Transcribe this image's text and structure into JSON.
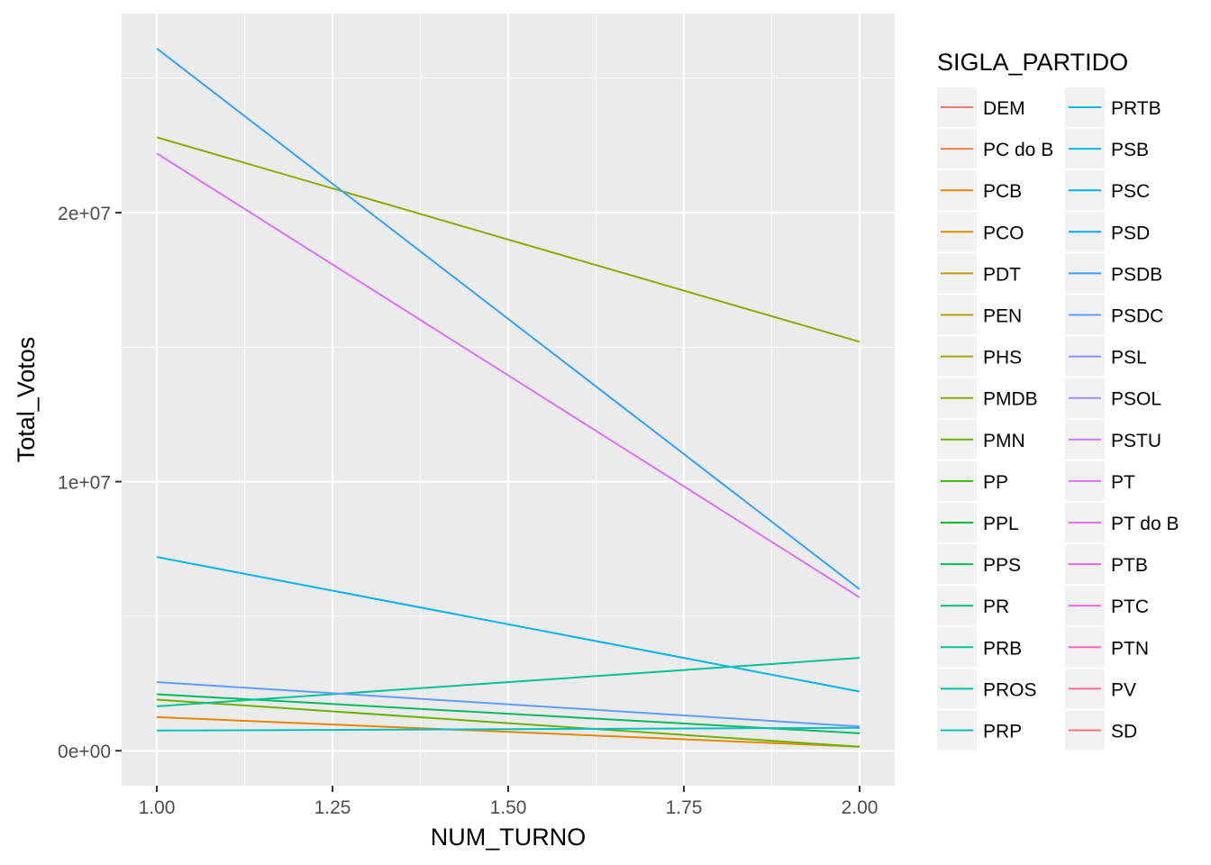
{
  "chart_data": {
    "type": "line",
    "xlabel": "NUM_TURNO",
    "ylabel": "Total_Votos",
    "xlim": [
      0.95,
      2.05
    ],
    "ylim": [
      -1300000,
      27400000
    ],
    "x_ticks": [
      {
        "value": 1.0,
        "label": "1.00"
      },
      {
        "value": 1.25,
        "label": "1.25"
      },
      {
        "value": 1.5,
        "label": "1.50"
      },
      {
        "value": 1.75,
        "label": "1.75"
      },
      {
        "value": 2.0,
        "label": "2.00"
      }
    ],
    "y_ticks": [
      {
        "value": 0,
        "label": "0e+00"
      },
      {
        "value": 10000000,
        "label": "1e+07"
      },
      {
        "value": 20000000,
        "label": "2e+07"
      }
    ],
    "grid": true,
    "legend_title": "SIGLA_PARTIDO",
    "legend_position": "right",
    "x": [
      1,
      2
    ],
    "series": [
      {
        "name": "DEM",
        "color": "#F8766D",
        "values": null
      },
      {
        "name": "PC do B",
        "color": "#F07E4D",
        "values": null
      },
      {
        "name": "PCB",
        "color": "#E58700",
        "values": [
          1250000,
          150000
        ]
      },
      {
        "name": "PCO",
        "color": "#D89000",
        "values": null
      },
      {
        "name": "PDT",
        "color": "#C99800",
        "values": null
      },
      {
        "name": "PEN",
        "color": "#B79F00",
        "values": null
      },
      {
        "name": "PHS",
        "color": "#A3A500",
        "values": null
      },
      {
        "name": "PMDB",
        "color": "#8BAB00",
        "values": [
          22800000,
          15200000
        ]
      },
      {
        "name": "PMN",
        "color": "#6BB100",
        "values": [
          1900000,
          150000
        ]
      },
      {
        "name": "PP",
        "color": "#39B600",
        "values": null
      },
      {
        "name": "PPL",
        "color": "#00BA38",
        "values": null
      },
      {
        "name": "PPS",
        "color": "#00BD5C",
        "values": [
          2100000,
          650000
        ]
      },
      {
        "name": "PR",
        "color": "#00BF7A",
        "values": null
      },
      {
        "name": "PRB",
        "color": "#00C097",
        "values": [
          1650000,
          3450000
        ]
      },
      {
        "name": "PROS",
        "color": "#00C0B1",
        "values": null
      },
      {
        "name": "PRP",
        "color": "#00BFC4",
        "values": [
          750000,
          850000
        ]
      },
      {
        "name": "PRTB",
        "color": "#00BCD8",
        "values": null
      },
      {
        "name": "PSB",
        "color": "#00B6EB",
        "values": [
          7200000,
          2200000
        ]
      },
      {
        "name": "PSC",
        "color": "#00B0F6",
        "values": null
      },
      {
        "name": "PSD",
        "color": "#00A9FF",
        "values": null
      },
      {
        "name": "PSDB",
        "color": "#35A2FF",
        "values": [
          26100000,
          6000000
        ]
      },
      {
        "name": "PSDC",
        "color": "#619CFF",
        "values": [
          2550000,
          900000
        ]
      },
      {
        "name": "PSL",
        "color": "#8B93FF",
        "values": null
      },
      {
        "name": "PSOL",
        "color": "#A58AFF",
        "values": null
      },
      {
        "name": "PSTU",
        "color": "#C77CFF",
        "values": null
      },
      {
        "name": "PT",
        "color": "#DB72FB",
        "values": [
          22200000,
          5700000
        ]
      },
      {
        "name": "PT do B",
        "color": "#E76BF3",
        "values": null
      },
      {
        "name": "PTB",
        "color": "#F265E7",
        "values": null
      },
      {
        "name": "PTC",
        "color": "#FA62DB",
        "values": null
      },
      {
        "name": "PTN",
        "color": "#FF62BC",
        "values": null
      },
      {
        "name": "PV",
        "color": "#FF6C91",
        "values": null
      },
      {
        "name": "SD",
        "color": "#F8766D",
        "values": null
      }
    ]
  }
}
